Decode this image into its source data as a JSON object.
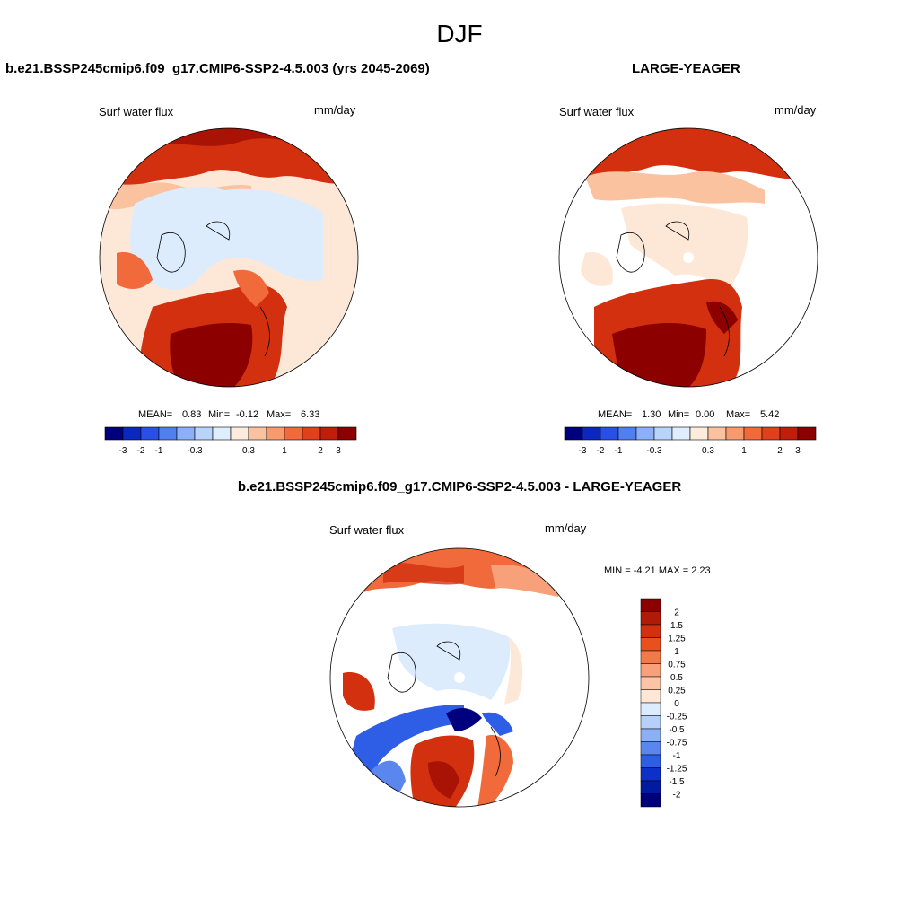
{
  "figure": {
    "title": "DJF"
  },
  "panels": [
    {
      "id": "case",
      "title": "b.e21.BSSP245cmip6.f09_g17.CMIP6-SSP2-4.5.003 (yrs 2045-2069)",
      "variable": "Surf water flux",
      "units": "mm/day",
      "stats": {
        "mean_label": "MEAN=",
        "mean": "0.83",
        "min_label": "Min=",
        "min": "-0.12",
        "max_label": "Max=",
        "max": "6.33"
      }
    },
    {
      "id": "obs",
      "title": "LARGE-YEAGER",
      "variable": "Surf water flux",
      "units": "mm/day",
      "stats": {
        "mean_label": "MEAN=",
        "mean": "1.30",
        "min_label": "Min=",
        "min": "0.00",
        "max_label": "Max=",
        "max": "5.42"
      }
    },
    {
      "id": "diff",
      "title": "b.e21.BSSP245cmip6.f09_g17.CMIP6-SSP2-4.5.003 - LARGE-YEAGER",
      "variable": "Surf water flux",
      "units": "mm/day",
      "stats_text": "MIN =  -4.21 MAX =   2.23"
    }
  ],
  "colorbar_horizontal": {
    "colors": [
      "#00007f",
      "#0a28c0",
      "#2850e6",
      "#5080f0",
      "#8cb0f8",
      "#b8d4fa",
      "#dfeefc",
      "#fdebdc",
      "#fbc2a0",
      "#f79a6e",
      "#f06a3c",
      "#e0401c",
      "#c01e0a",
      "#8c0000"
    ],
    "tick_labels": [
      "-3",
      "-2",
      "-1",
      "-0.3",
      "0.3",
      "1",
      "2",
      "3"
    ],
    "tick_positions": [
      1,
      2,
      3,
      4,
      6,
      7,
      8,
      9,
      10,
      11,
      12,
      13
    ],
    "tick_label_map": {
      "1": "-3",
      "2": "-2",
      "3": "-1",
      "5": "-0.3",
      "8": "0.3",
      "10": "1",
      "12": "2",
      "13": "3"
    }
  },
  "colorbar_vertical": {
    "colors_top_to_bottom": [
      "#8c0000",
      "#b01a08",
      "#d2300e",
      "#e8501e",
      "#f27a48",
      "#f8a07a",
      "#fbc4a6",
      "#fde8d8",
      "#dcecfc",
      "#b6d0fa",
      "#8cb0f6",
      "#5a86ee",
      "#2e5ee6",
      "#0c30c8",
      "#001aa0",
      "#00007a"
    ],
    "labels": [
      "2",
      "1.5",
      "1.25",
      "1",
      "0.75",
      "0.5",
      "0.25",
      "0",
      "-0.25",
      "-0.5",
      "-0.75",
      "-1",
      "-1.25",
      "-1.5",
      "-2"
    ]
  },
  "map_colors": {
    "dark_red": "#8c0000",
    "red": "#d2300e",
    "orange": "#f06a3c",
    "light_orange": "#f8a07a",
    "peach": "#fde8d8",
    "light_blue": "#dcecfc",
    "blue": "#2e5ee6",
    "navy": "#00007f",
    "white": "#ffffff"
  }
}
